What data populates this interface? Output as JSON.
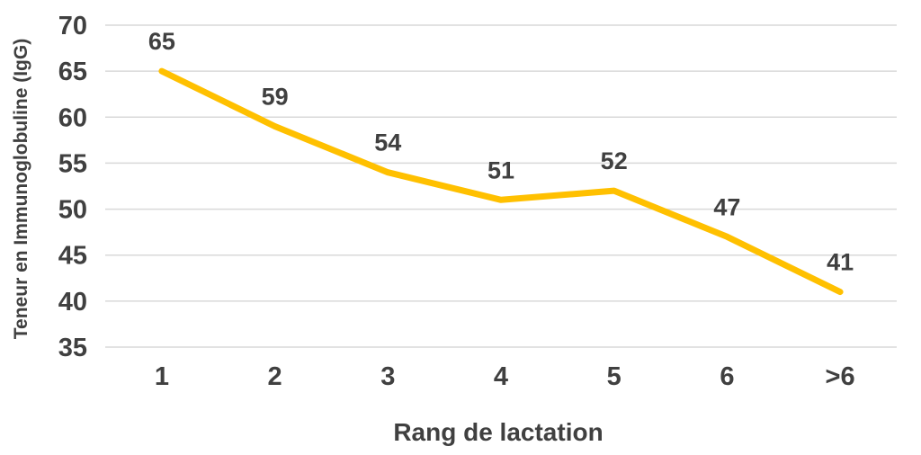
{
  "chart_data": {
    "type": "line",
    "categories": [
      "1",
      "2",
      "3",
      "4",
      "5",
      "6",
      ">6"
    ],
    "values": [
      65,
      59,
      54,
      51,
      52,
      47,
      41
    ],
    "data_labels": [
      "65",
      "59",
      "54",
      "51",
      "52",
      "47",
      "41"
    ],
    "title": "",
    "xlabel": "Rang de lactation",
    "ylabel": "Teneur en Immunoglobuline (IgG)",
    "ylim": [
      35,
      70
    ],
    "ytick_step": 5,
    "yticks": [
      "35",
      "40",
      "45",
      "50",
      "55",
      "60",
      "65",
      "70"
    ],
    "grid": true,
    "legend": false,
    "line_color": "#FFC000",
    "text_color": "#404040",
    "grid_color": "#D9D9D9",
    "background_color": "#FFFFFF"
  }
}
